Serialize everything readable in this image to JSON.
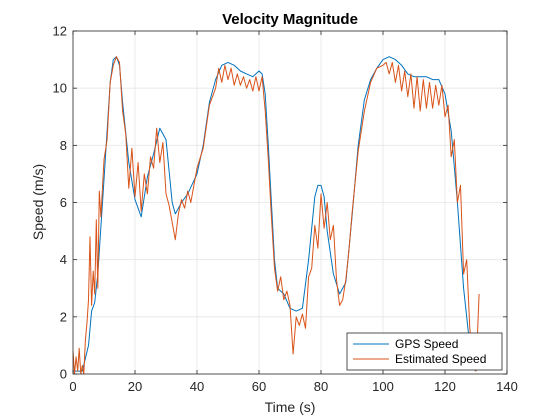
{
  "chart_data": {
    "type": "line",
    "title": "Velocity Magnitude",
    "xlabel": "Time (s)",
    "ylabel": "Speed (m/s)",
    "xlim": [
      0,
      140
    ],
    "ylim": [
      0,
      12
    ],
    "xticks": [
      0,
      20,
      40,
      60,
      80,
      100,
      120,
      140
    ],
    "yticks": [
      0,
      2,
      4,
      6,
      8,
      10,
      12
    ],
    "grid": true,
    "legend_position": "bottom-right",
    "series": [
      {
        "name": "GPS Speed",
        "color": "#0072BD",
        "x": [
          0,
          3,
          5,
          6,
          7,
          8,
          10,
          12,
          13,
          14,
          15,
          16,
          18,
          20,
          22,
          24,
          26,
          28,
          30,
          32,
          33,
          35,
          37,
          40,
          42,
          44,
          46,
          48,
          50,
          52,
          54,
          56,
          58,
          59,
          60,
          61,
          62,
          63,
          64,
          65,
          66,
          68,
          70,
          72,
          74,
          76,
          78,
          79,
          80,
          81,
          82,
          84,
          86,
          88,
          90,
          92,
          94,
          96,
          98,
          100,
          102,
          104,
          106,
          108,
          110,
          112,
          114,
          116,
          118,
          120,
          122,
          124,
          126,
          128,
          129,
          130
        ],
        "y": [
          0.1,
          0.1,
          1.0,
          2.2,
          2.5,
          3.5,
          6.8,
          10.2,
          11.0,
          11.1,
          10.8,
          9.5,
          7.4,
          6.1,
          5.5,
          6.9,
          7.7,
          8.6,
          8.2,
          6.0,
          5.6,
          6.0,
          6.3,
          7.0,
          8.0,
          9.5,
          10.3,
          10.8,
          10.9,
          10.8,
          10.6,
          10.5,
          10.4,
          10.5,
          10.6,
          10.5,
          9.8,
          8.0,
          6.0,
          4.0,
          3.0,
          2.8,
          2.3,
          2.2,
          2.3,
          4.0,
          6.2,
          6.6,
          6.6,
          6.2,
          5.0,
          3.5,
          2.8,
          3.2,
          5.5,
          8.0,
          9.6,
          10.3,
          10.7,
          11.0,
          11.1,
          11.0,
          10.8,
          10.5,
          10.4,
          10.4,
          10.4,
          10.3,
          10.3,
          9.8,
          8.5,
          6.0,
          3.0,
          1.0,
          0.2,
          0.1
        ]
      },
      {
        "name": "Estimated Speed",
        "color": "#D95319",
        "x": [
          0,
          0.5,
          1,
          1.5,
          2,
          2.5,
          3,
          3.5,
          4,
          4.5,
          5,
          5.5,
          6,
          6.5,
          7,
          7.5,
          8,
          8.5,
          9,
          10,
          11,
          12,
          13,
          14,
          15,
          16,
          17,
          18,
          19,
          20,
          21,
          22,
          23,
          24,
          25,
          26,
          27,
          28,
          29,
          30,
          31,
          32,
          33,
          34,
          35,
          36,
          37,
          38,
          40,
          42,
          44,
          46,
          47,
          48,
          49,
          50,
          51,
          52,
          53,
          54,
          55,
          56,
          57,
          58,
          59,
          60,
          61,
          62,
          63,
          64,
          65,
          66,
          67,
          68,
          69,
          70,
          71,
          72,
          73,
          74,
          75,
          76,
          77,
          78,
          79,
          80,
          81,
          82,
          83,
          84,
          85,
          86,
          87,
          88,
          89,
          90,
          92,
          94,
          96,
          98,
          100,
          101,
          102,
          103,
          104,
          105,
          106,
          107,
          108,
          109,
          110,
          111,
          112,
          113,
          114,
          115,
          116,
          117,
          118,
          119,
          120,
          121,
          122,
          123,
          124,
          125,
          126,
          127,
          128,
          129,
          130,
          131
        ],
        "y": [
          0.8,
          0.0,
          0.6,
          0.1,
          0.9,
          0.0,
          0.3,
          0.0,
          1.2,
          1.8,
          2.6,
          4.8,
          2.4,
          3.6,
          2.8,
          5.4,
          3.0,
          6.4,
          5.5,
          7.5,
          8.2,
          10.2,
          10.8,
          11.1,
          10.9,
          9.2,
          8.4,
          6.5,
          7.9,
          6.2,
          7.4,
          5.7,
          7.0,
          6.3,
          7.6,
          7.2,
          8.6,
          7.4,
          8.1,
          6.3,
          5.9,
          5.3,
          4.7,
          5.6,
          6.1,
          5.8,
          6.4,
          6.0,
          7.2,
          7.9,
          9.4,
          10.0,
          10.7,
          10.2,
          10.8,
          10.3,
          10.7,
          10.1,
          10.5,
          10.1,
          10.4,
          10.0,
          10.3,
          9.9,
          10.4,
          9.9,
          10.4,
          9.2,
          7.5,
          5.5,
          3.7,
          2.9,
          3.4,
          2.6,
          2.9,
          2.4,
          0.7,
          2.0,
          1.7,
          2.1,
          1.6,
          3.4,
          3.7,
          5.2,
          4.4,
          6.3,
          5.1,
          6.0,
          4.7,
          5.2,
          3.3,
          2.4,
          2.6,
          3.3,
          4.3,
          5.6,
          7.8,
          9.2,
          10.2,
          10.7,
          10.8,
          10.9,
          10.5,
          10.9,
          10.2,
          10.8,
          9.9,
          10.6,
          9.7,
          10.5,
          9.3,
          10.4,
          9.2,
          10.3,
          9.3,
          10.2,
          9.3,
          10.1,
          9.4,
          10.1,
          9.0,
          9.4,
          7.6,
          8.2,
          6.0,
          6.6,
          3.5,
          4.0,
          1.6,
          0.5,
          0.1,
          2.8
        ]
      }
    ]
  }
}
